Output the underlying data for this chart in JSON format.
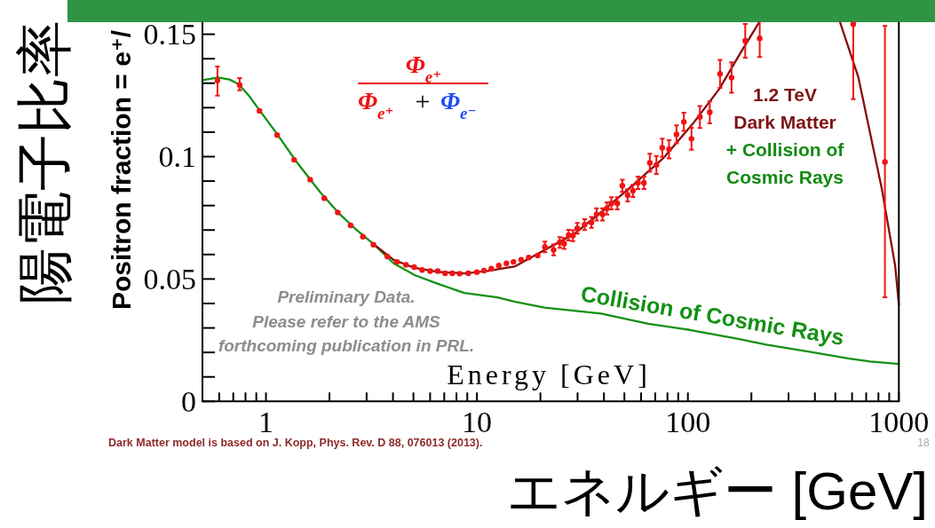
{
  "chart_data": {
    "type": "line",
    "xlabel": "Energy [GeV]",
    "ylabel": "Positron fraction = e⁺/",
    "annotations": [
      "陽電子比率",
      "エネルギー [GeV]",
      "Φ$_{e⁺}$",
      "Φ$_{e⁺}$",
      "+",
      "Φ$_{e⁻}$",
      "1.2 TeV\nDark Matter",
      "+ Collision of\nCosmic Rays",
      "Preliminary Data.\nPlease refer to the AMS\nforthcoming publication in PRL.",
      "Dark Matter model is based on J. Kopp, Phys. Rev. D 88, 076013 (2013).",
      "18"
    ],
    "log": "x",
    "xlim": [
      0.5,
      1000
    ],
    "ylim": [
      0,
      0.155
    ],
    "xticks": [
      {
        "value": 0.6,
        "label": null
      },
      {
        "value": 0.7,
        "label": null
      },
      {
        "value": 0.8,
        "label": null
      },
      {
        "value": 0.9,
        "label": null
      },
      1,
      {
        "value": 2,
        "label": null
      },
      {
        "value": 3,
        "label": null
      },
      {
        "value": 4,
        "label": null
      },
      {
        "value": 5,
        "label": null
      },
      {
        "value": 6,
        "label": null
      },
      {
        "value": 7,
        "label": null
      },
      {
        "value": 8,
        "label": null
      },
      {
        "value": 9,
        "label": null
      },
      10,
      {
        "value": 20,
        "label": null
      },
      {
        "value": 30,
        "label": null
      },
      {
        "value": 40,
        "label": null
      },
      {
        "value": 50,
        "label": null
      },
      {
        "value": 60,
        "label": null
      },
      {
        "value": 70,
        "label": null
      },
      {
        "value": 80,
        "label": null
      },
      {
        "value": 90,
        "label": null
      },
      100,
      {
        "value": 200,
        "label": null
      },
      {
        "value": 300,
        "label": null
      },
      {
        "value": 400,
        "label": null
      },
      {
        "value": 500,
        "label": null
      },
      {
        "value": 600,
        "label": null
      },
      {
        "value": 700,
        "label": null
      },
      {
        "value": 800,
        "label": null
      },
      {
        "value": 900,
        "label": null
      },
      1000
    ],
    "yticks": [
      0,
      {
        "value": 0.01,
        "label": null
      },
      {
        "value": 0.02,
        "label": null
      },
      {
        "value": 0.03,
        "label": null
      },
      {
        "value": 0.04,
        "label": null
      },
      0.05,
      {
        "value": 0.06,
        "label": null
      },
      {
        "value": 0.07,
        "label": null
      },
      {
        "value": 0.08,
        "label": null
      },
      {
        "value": 0.09,
        "label": null
      },
      0.1,
      {
        "value": 0.11,
        "label": null
      },
      {
        "value": 0.12,
        "label": null
      },
      {
        "value": 0.13,
        "label": null
      },
      {
        "value": 0.14,
        "label": null
      },
      0.15
    ],
    "series": [
      {
        "type": "scatter",
        "color": "#f01414",
        "marker": "circle",
        "x": [
          0.589,
          0.75,
          0.932,
          1.13,
          1.36,
          1.62,
          1.89,
          2.19,
          2.52,
          2.88,
          3.23,
          3.76,
          4.18,
          4.61,
          5.04,
          5.5,
          6.0,
          6.52,
          7.07,
          7.64,
          8.28,
          9.1,
          9.99,
          10.8,
          11.7,
          12.7,
          13.8,
          14.9,
          16.2,
          17.6,
          19.4,
          21.0,
          23.1,
          24.7,
          25.9,
          27.2,
          28.5,
          29.9,
          32.4,
          34.9,
          36.9,
          39.4,
          41.3,
          43.4,
          46.3,
          48.9,
          51.8,
          54.9,
          58.0,
          61.9,
          66.0,
          70.9,
          75.6,
          81.4,
          88.3,
          95.7,
          104,
          114,
          127,
          142,
          161,
          187,
          219,
          608,
          859
        ],
        "values": [
          0.1311,
          0.1293,
          0.1187,
          0.1088,
          0.0987,
          0.0906,
          0.083,
          0.0772,
          0.0719,
          0.0673,
          0.064,
          0.0592,
          0.057,
          0.0558,
          0.0549,
          0.0537,
          0.0532,
          0.0532,
          0.0523,
          0.0523,
          0.0522,
          0.0523,
          0.0528,
          0.0534,
          0.0542,
          0.0555,
          0.0564,
          0.057,
          0.0579,
          0.0588,
          0.0596,
          0.0631,
          0.0619,
          0.0649,
          0.0645,
          0.0679,
          0.0677,
          0.0707,
          0.0722,
          0.0731,
          0.0764,
          0.0764,
          0.0788,
          0.0809,
          0.0809,
          0.0881,
          0.0842,
          0.086,
          0.0893,
          0.0893,
          0.0975,
          0.0966,
          0.1036,
          0.103,
          0.1091,
          0.1142,
          0.1073,
          0.1162,
          0.1181,
          0.1338,
          0.1323,
          0.1473,
          0.1483,
          0.1541,
          0.0978
        ],
        "errors": [
          [
            0.1249,
            0.1368
          ],
          [
            0.1271,
            0.1321
          ],
          null,
          null,
          null,
          null,
          null,
          null,
          null,
          null,
          null,
          null,
          null,
          null,
          null,
          null,
          null,
          null,
          null,
          null,
          null,
          null,
          null,
          null,
          null,
          null,
          null,
          null,
          null,
          null,
          null,
          0.0022,
          0.0022,
          0.0022,
          0.0022,
          0.0022,
          0.0022,
          0.0022,
          0.0022,
          0.0022,
          0.0025,
          0.0025,
          0.0025,
          0.0025,
          0.0025,
          0.0025,
          0.0025,
          0.0025,
          0.0025,
          0.0025,
          0.0037,
          0.0037,
          0.0037,
          0.0037,
          0.0037,
          0.0037,
          0.0045,
          0.0045,
          0.0045,
          0.0057,
          0.0062,
          0.0069,
          0.0076,
          [
            0.1235,
            0.155
          ],
          [
            0.0425,
            0.1534
          ]
        ]
      },
      {
        "type": "line",
        "name": "Collision of Cosmic Rays",
        "color": "#139113",
        "x": [
          0.5,
          0.593,
          0.672,
          0.741,
          0.832,
          0.917,
          1.13,
          1.39,
          1.81,
          2.19,
          2.66,
          3.23,
          4.03,
          5.07,
          6.54,
          8.72,
          12.5,
          15.2,
          20.9,
          38.8,
          64.9,
          102,
          171,
          235,
          382,
          583,
          731,
          1000
        ],
        "values": [
          0.1312,
          0.1323,
          0.1315,
          0.1296,
          0.1248,
          0.1198,
          0.1092,
          0.0981,
          0.0854,
          0.0773,
          0.0704,
          0.0643,
          0.0564,
          0.0516,
          0.048,
          0.0443,
          0.0425,
          0.0407,
          0.0383,
          0.0359,
          0.0317,
          0.0292,
          0.0256,
          0.0232,
          0.0202,
          0.0175,
          0.0163,
          0.0153
        ]
      },
      {
        "type": "line",
        "color": "#8b0a0a",
        "x": [
          3.23,
          4.03,
          5.07,
          6.54,
          8.72,
          11.4,
          15.2,
          21.0,
          29.0,
          40.0,
          55.2,
          76.3,
          105,
          141,
          177,
          218
        ],
        "values": [
          0.0643,
          0.0578,
          0.0545,
          0.0529,
          0.0523,
          0.0534,
          0.0552,
          0.0619,
          0.0685,
          0.0782,
          0.0885,
          0.0993,
          0.1132,
          0.1277,
          0.1422,
          0.155
        ]
      },
      {
        "type": "line",
        "color": "#8b0a0a",
        "x": [
          526,
          642,
          831,
          961,
          1000
        ],
        "values": [
          0.155,
          0.1326,
          0.0867,
          0.0552,
          0.0395
        ]
      }
    ]
  }
}
